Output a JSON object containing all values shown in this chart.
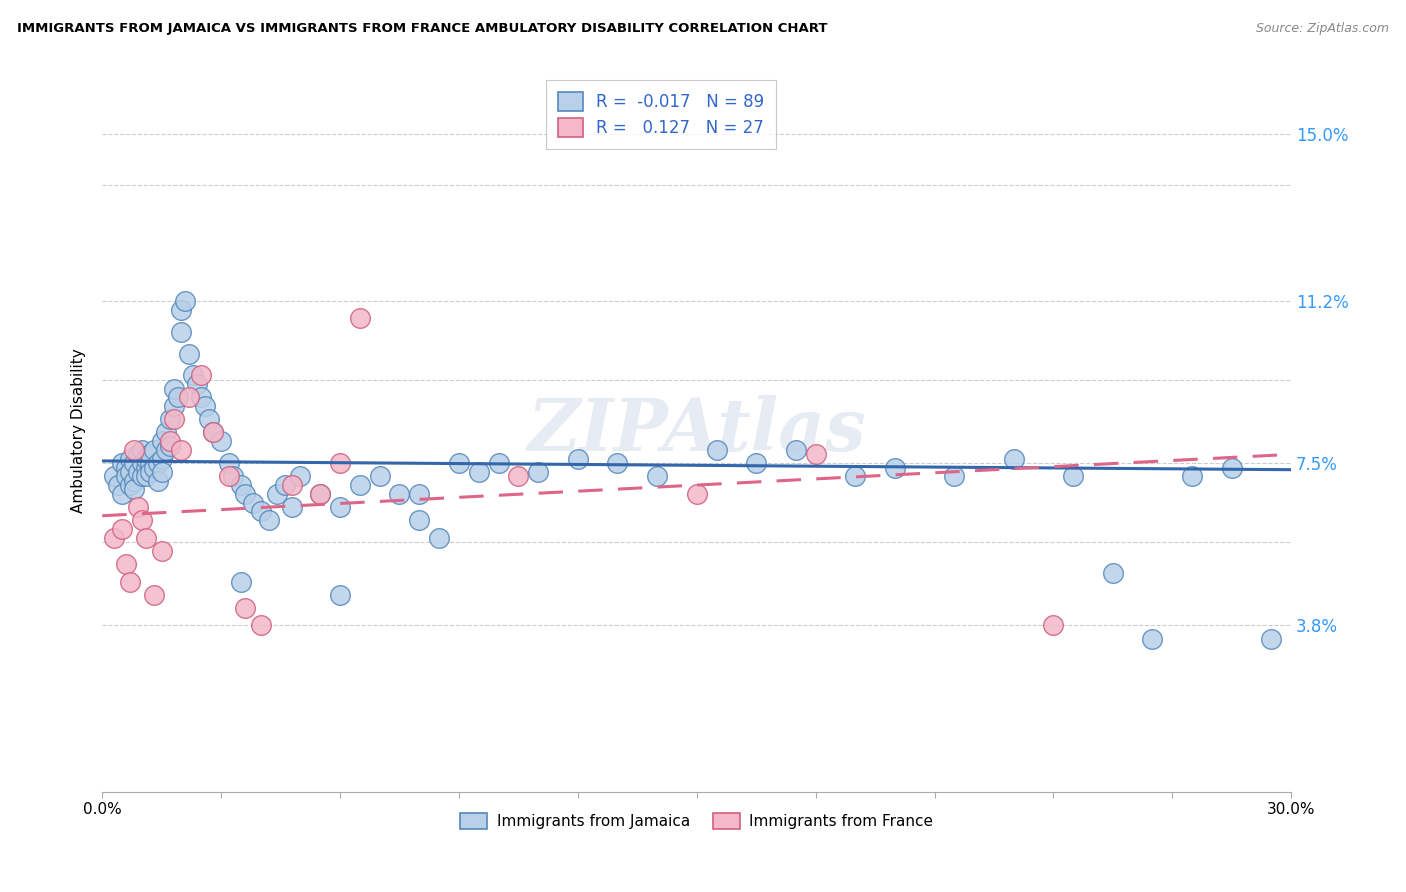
{
  "title": "IMMIGRANTS FROM JAMAICA VS IMMIGRANTS FROM FRANCE AMBULATORY DISABILITY CORRELATION CHART",
  "source": "Source: ZipAtlas.com",
  "ylabel": "Ambulatory Disability",
  "xlim": [
    0.0,
    0.3
  ],
  "ylim": [
    0.0,
    0.165
  ],
  "ytick_values": [
    0.0,
    0.038,
    0.057,
    0.075,
    0.094,
    0.112,
    0.1385,
    0.15
  ],
  "ytick_labels": [
    "",
    "3.8%",
    "",
    "7.5%",
    "",
    "11.2%",
    "",
    "15.0%"
  ],
  "xtick_values": [
    0.0,
    0.03,
    0.06,
    0.09,
    0.12,
    0.15,
    0.18,
    0.21,
    0.24,
    0.27,
    0.3
  ],
  "xtick_labels": [
    "0.0%",
    "",
    "",
    "",
    "",
    "",
    "",
    "",
    "",
    "",
    "30.0%"
  ],
  "jamaica_color": "#b8d0e8",
  "france_color": "#f4b8c8",
  "jamaica_edge": "#5588bb",
  "france_edge": "#d06080",
  "jamaica_R": -0.017,
  "jamaica_N": 89,
  "france_R": 0.127,
  "france_N": 27,
  "jamaica_line_color": "#3366aa",
  "france_line_color": "#dd6688",
  "watermark": "ZIPAtlas",
  "jamaica_x": [
    0.003,
    0.004,
    0.005,
    0.005,
    0.006,
    0.006,
    0.007,
    0.007,
    0.007,
    0.008,
    0.008,
    0.008,
    0.009,
    0.009,
    0.01,
    0.01,
    0.01,
    0.011,
    0.011,
    0.011,
    0.012,
    0.012,
    0.012,
    0.013,
    0.013,
    0.014,
    0.014,
    0.015,
    0.015,
    0.015,
    0.016,
    0.016,
    0.017,
    0.017,
    0.018,
    0.018,
    0.019,
    0.02,
    0.02,
    0.021,
    0.022,
    0.023,
    0.024,
    0.025,
    0.026,
    0.027,
    0.028,
    0.03,
    0.032,
    0.033,
    0.035,
    0.036,
    0.038,
    0.04,
    0.042,
    0.044,
    0.046,
    0.048,
    0.05,
    0.055,
    0.06,
    0.065,
    0.07,
    0.075,
    0.08,
    0.085,
    0.09,
    0.095,
    0.1,
    0.11,
    0.12,
    0.13,
    0.14,
    0.155,
    0.165,
    0.175,
    0.19,
    0.2,
    0.215,
    0.23,
    0.245,
    0.255,
    0.265,
    0.275,
    0.285,
    0.295,
    0.06,
    0.08,
    0.035
  ],
  "jamaica_y": [
    0.072,
    0.07,
    0.075,
    0.068,
    0.074,
    0.072,
    0.076,
    0.07,
    0.073,
    0.071,
    0.075,
    0.069,
    0.077,
    0.073,
    0.075,
    0.072,
    0.078,
    0.074,
    0.076,
    0.072,
    0.075,
    0.073,
    0.077,
    0.074,
    0.078,
    0.075,
    0.071,
    0.08,
    0.076,
    0.073,
    0.082,
    0.078,
    0.085,
    0.079,
    0.088,
    0.092,
    0.09,
    0.11,
    0.105,
    0.112,
    0.1,
    0.095,
    0.093,
    0.09,
    0.088,
    0.085,
    0.082,
    0.08,
    0.075,
    0.072,
    0.07,
    0.068,
    0.066,
    0.064,
    0.062,
    0.068,
    0.07,
    0.065,
    0.072,
    0.068,
    0.065,
    0.07,
    0.072,
    0.068,
    0.062,
    0.058,
    0.075,
    0.073,
    0.075,
    0.073,
    0.076,
    0.075,
    0.072,
    0.078,
    0.075,
    0.078,
    0.072,
    0.074,
    0.072,
    0.076,
    0.072,
    0.05,
    0.035,
    0.072,
    0.074,
    0.035,
    0.045,
    0.068,
    0.048
  ],
  "france_x": [
    0.003,
    0.005,
    0.006,
    0.007,
    0.008,
    0.009,
    0.01,
    0.011,
    0.013,
    0.015,
    0.017,
    0.018,
    0.02,
    0.022,
    0.025,
    0.028,
    0.032,
    0.036,
    0.04,
    0.048,
    0.055,
    0.06,
    0.065,
    0.105,
    0.15,
    0.18,
    0.24
  ],
  "france_y": [
    0.058,
    0.06,
    0.052,
    0.048,
    0.078,
    0.065,
    0.062,
    0.058,
    0.045,
    0.055,
    0.08,
    0.085,
    0.078,
    0.09,
    0.095,
    0.082,
    0.072,
    0.042,
    0.038,
    0.07,
    0.068,
    0.075,
    0.108,
    0.072,
    0.068,
    0.077,
    0.038
  ]
}
